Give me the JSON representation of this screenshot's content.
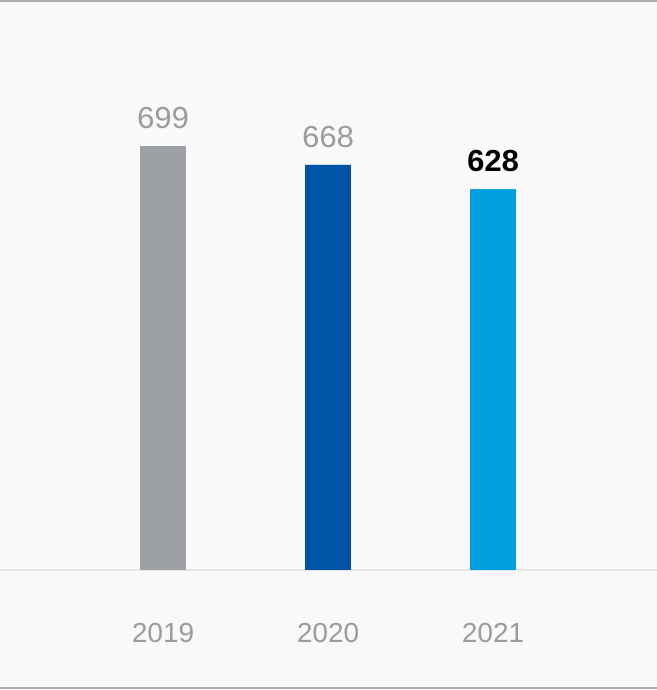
{
  "chart_data": {
    "type": "bar",
    "categories": [
      "2019",
      "2020",
      "2021"
    ],
    "values": [
      699,
      668,
      628
    ],
    "value_labels": [
      "699",
      "668",
      "628"
    ],
    "bar_colors": [
      "#9ca0a4",
      "#0054a6",
      "#00a0e0"
    ],
    "label_colors": [
      "#9c9c9c",
      "#9c9c9c",
      "#000000"
    ],
    "highlight": "2021",
    "ylim": [
      0,
      750
    ],
    "grid": false,
    "legend": "none"
  },
  "colors": {
    "background": "#f9f9f9",
    "frame_line": "#a8acae",
    "baseline": "#e0e0e0"
  }
}
